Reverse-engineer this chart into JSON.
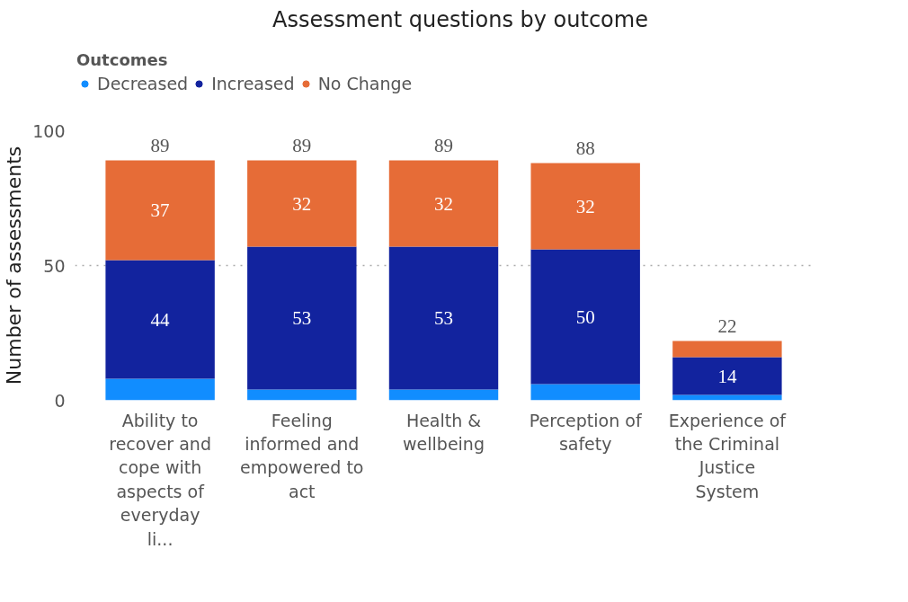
{
  "chart_data": {
    "type": "bar",
    "title": "Assessment questions by outcome",
    "ylabel": "Number of assessments",
    "legend_title": "Outcomes",
    "legend": "top left",
    "stacked": true,
    "grid": "y",
    "categories": [
      "Ability to recover and cope with aspects of everyday li...",
      "Feeling informed and empowered to act",
      "Health & wellbeing",
      "Perception of safety",
      "Experience of the Criminal Justice System"
    ],
    "ylim": [
      0,
      100
    ],
    "yticks": [
      0,
      50,
      100
    ],
    "series": [
      {
        "name": "Decreased",
        "color": "#118dff",
        "values": [
          8,
          4,
          4,
          6,
          2
        ],
        "value_labels": [
          null,
          null,
          null,
          null,
          null
        ]
      },
      {
        "name": "Increased",
        "color": "#12239e",
        "values": [
          44,
          53,
          53,
          50,
          14
        ],
        "value_labels": [
          "44",
          "53",
          "53",
          "50",
          "14"
        ]
      },
      {
        "name": "No Change",
        "color": "#e66c37",
        "values": [
          37,
          32,
          32,
          32,
          6
        ],
        "value_labels": [
          "37",
          "32",
          "32",
          "32",
          null
        ]
      }
    ],
    "totals": [
      "89",
      "89",
      "89",
      "88",
      "22"
    ]
  }
}
